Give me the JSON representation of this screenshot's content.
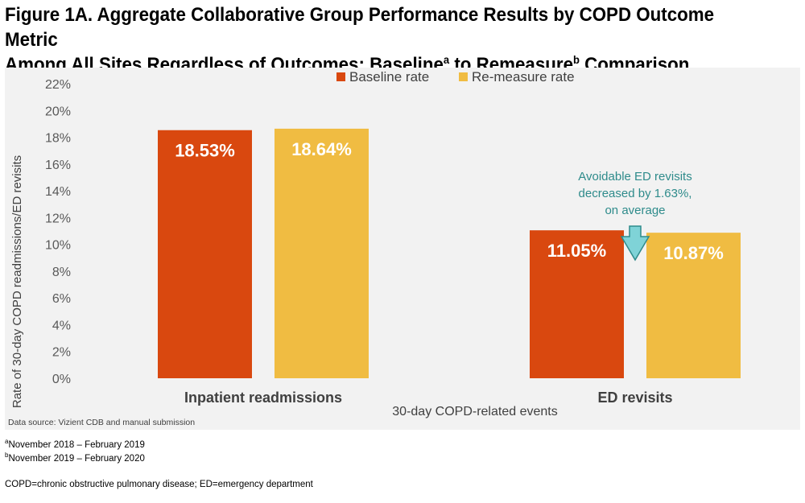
{
  "figure": {
    "title_line1": "Figure 1A. Aggregate Collaborative Group Performance Results by COPD Outcome Metric",
    "title_line2_part1": "Among All Sites Regardless of Outcomes: Baseline",
    "title_sup1": "a",
    "title_line2_part2": " to Remeasure",
    "title_sup2": "b",
    "title_line2_part3": " Comparison"
  },
  "chart_data": {
    "type": "bar",
    "ylabel": "Rate of 30-day COPD readmissions/ED revisits",
    "xlabel": "30-day COPD-related events",
    "ylim": [
      0,
      22
    ],
    "ytick_step": 2,
    "categories": [
      "Inpatient readmissions",
      "ED revisits"
    ],
    "series": [
      {
        "name": "Baseline rate",
        "color": "#d9480f",
        "values": [
          18.53,
          11.05
        ],
        "labels": [
          "18.53%",
          "11.05%"
        ]
      },
      {
        "name": "Re-measure rate",
        "color": "#f0bc42",
        "values": [
          18.64,
          10.87
        ],
        "labels": [
          "18.64%",
          "10.87%"
        ]
      }
    ],
    "legend_position": "top",
    "grid": false,
    "annotation": {
      "lines": [
        "Avoidable ED revisits",
        "decreased by 1.63%,",
        "on average"
      ],
      "color": "#2e8b8b",
      "arrow_fill": "#7fd3d7",
      "category_index": 1
    },
    "source": "Data source: Vizient CDB and manual submission"
  },
  "footnotes": {
    "a_marker": "a",
    "a_text": "November 2018 – February 2019",
    "b_marker": "b",
    "b_text": "November 2019 – February 2020",
    "abbrev": "COPD=chronic obstructive pulmonary disease; ED=emergency department"
  }
}
